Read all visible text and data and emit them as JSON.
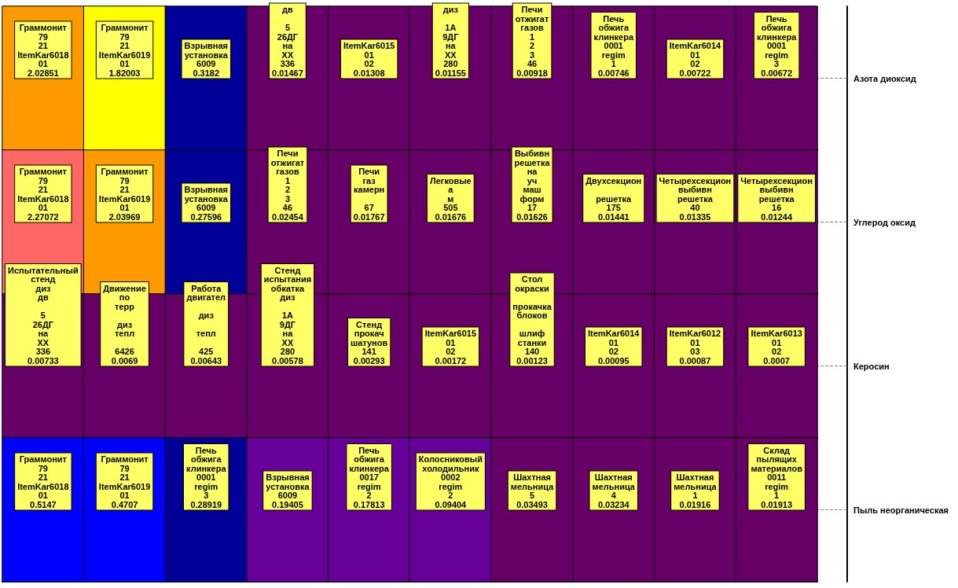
{
  "chart_data": {
    "type": "heatmap",
    "categories": [
      null,
      null,
      null,
      null,
      null,
      null,
      null,
      null,
      null,
      null
    ],
    "y_categories": [
      "Азота диоксид",
      "Углерод оксид",
      "Керосин",
      "Пыль неорганическая"
    ],
    "cells": [
      [
        2.02851,
        1.82003,
        0.3182,
        0.01467,
        0.01308,
        0.01155,
        0.00918,
        0.00746,
        0.00722,
        0.00672
      ],
      [
        2.27072,
        2.03969,
        0.27596,
        0.02454,
        0.01767,
        0.01676,
        0.01626,
        0.01441,
        0.01335,
        0.01244
      ],
      [
        0.00733,
        0.0069,
        0.00643,
        0.00578,
        0.00293,
        0.00172,
        0.00123,
        0.00095,
        0.00087,
        0.0007
      ],
      [
        0.5147,
        0.4707,
        0.28919,
        0.19405,
        0.17813,
        0.09404,
        0.03493,
        0.03234,
        0.01916,
        0.01913
      ]
    ],
    "data_labels": true,
    "annotations": [
      "Граммонит\n79\n21\nItemKar6018\n01",
      "Граммонит\n79\n21\nItemKar6019\n01",
      "Взрывная\nустановка\n6009",
      "дв\n\n5\n26ДГ\nна\nXX\n336",
      "ItemKar6015\n01\n02",
      "диз\n\n1А\n9ДГ\nна\nXX\n280",
      "Печи\nотжигат\nгазов\n1\n2\n3\n46",
      "Печь\nобжига\nклинкера\n0001\nregim\n1",
      "ItemKar6014\n01\n02",
      "Печь\nобжига\nклинкера\n0001\nregim\n3",
      "Граммонит\n79\n21\nItemKar6018\n01",
      "Граммонит\n79\n21\nItemKar6019\n01",
      "Взрывная\nустановка\n6009",
      "Печи\nотжигат\nгазов\n1\n2\n3\n46",
      "Печи\nгаз\nкамерн\n\n67",
      "Легковые\nа\nм\n505",
      "Выбивн\nрешетка\nна\nуч\nмаш\nформ\n17",
      "Двухсекцион\n\nрешетка\n175",
      "Четырехсекцион\nвыбивн\nрешетка\n40",
      "Четырехсекцион\nвыбивн\nрешетка\n16",
      "Испытательный\nстенд\nдиз\nдв\n\n5\n26ДГ\nна\nXX\n336",
      "Движение\nпо\nтерр\n\nдиз\nтепл\n\n6426",
      "Работа\nдвигател\n\nдиз\n\nтепл\n\n425",
      "Стенд\nиспытания\nобкатка\nдиз\n\n1А\n9ДГ\nна\nXX\n280",
      "Стенд\nпрокач\nшатунов\n141",
      "ItemKar6015\n01\n02",
      "Стол\nокраски\n\nпрокачка\nблоков\n\nшлиф\nстанки\n140",
      "ItemKar6014\n01\n02",
      "ItemKar6012\n01\n03",
      "ItemKar6013\n01\n02",
      "Граммонит\n79\n21\nItemKar6018\n01",
      "Граммонит\n79\n21\nItemKar6019\n01",
      "Печь\nобжига\nклинкера\n0001\nregim\n3",
      "Взрывная\nустановка\n6009",
      "Печь\nобжига\nклинкера\n0017\nregim\n2",
      "Колосниковый\nхолодильник\n0002\nregim\n2",
      "Шахтная\nмельница\n5",
      "Шахтная\nмельница\n4",
      "Шахтная\nмельница\n1",
      "Склад\nпылящих\nматериалов\n0011\nregim\n1"
    ],
    "colors": [
      [
        "#ff9900",
        "#ffff00",
        "#000099",
        "#660066",
        "#660066",
        "#660066",
        "#660066",
        "#660066",
        "#660066",
        "#660066"
      ],
      [
        "#ff6666",
        "#ff9900",
        "#000099",
        "#660066",
        "#660066",
        "#660066",
        "#660066",
        "#660066",
        "#660066",
        "#660066"
      ],
      [
        "#660066",
        "#660066",
        "#660066",
        "#660066",
        "#660066",
        "#660066",
        "#660066",
        "#660066",
        "#660066",
        "#660066"
      ],
      [
        "#0000ff",
        "#0000ff",
        "#000099",
        "#660099",
        "#660099",
        "#660099",
        "#660066",
        "#660066",
        "#660066",
        "#660066"
      ]
    ]
  }
}
